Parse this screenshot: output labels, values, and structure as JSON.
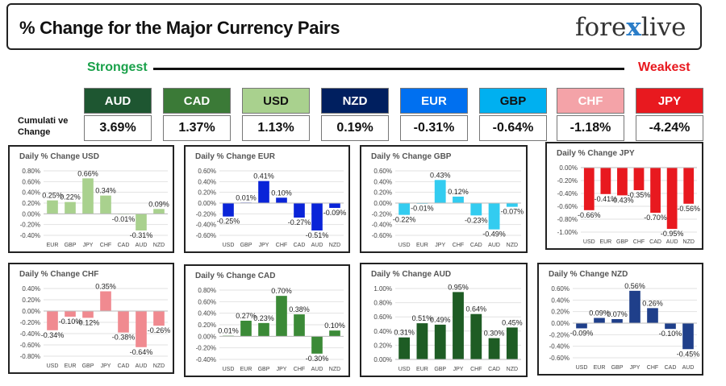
{
  "header": {
    "title": "% Change for the Major Currency Pairs",
    "logo_left": "fore",
    "logo_x": "x",
    "logo_right": "live"
  },
  "strength": {
    "strongest_label": "Strongest",
    "weakest_label": "Weakest",
    "cumulative_label_1": "Cumulati ve",
    "cumulative_label_2": "Change"
  },
  "currencies": [
    {
      "code": "AUD",
      "value": "3.69%",
      "bg": "#1e5631",
      "fg": "#ffffff"
    },
    {
      "code": "CAD",
      "value": "1.37%",
      "bg": "#3b7a37",
      "fg": "#ffffff"
    },
    {
      "code": "USD",
      "value": "1.13%",
      "bg": "#a9d18e",
      "fg": "#111111"
    },
    {
      "code": "NZD",
      "value": "0.19%",
      "bg": "#001f5f",
      "fg": "#ffffff"
    },
    {
      "code": "EUR",
      "value": "-0.31%",
      "bg": "#0070f0",
      "fg": "#ffffff"
    },
    {
      "code": "GBP",
      "value": "-0.64%",
      "bg": "#00b0f0",
      "fg": "#111111"
    },
    {
      "code": "CHF",
      "value": "-1.18%",
      "bg": "#f4a3a8",
      "fg": "#ffffff"
    },
    {
      "code": "JPY",
      "value": "-4.24%",
      "bg": "#e8191f",
      "fg": "#ffffff"
    }
  ],
  "chart_data": [
    {
      "type": "bar",
      "title": "Daily % Change USD",
      "categories": [
        "EUR",
        "GBP",
        "JPY",
        "CHF",
        "CAD",
        "AUD",
        "NZD"
      ],
      "values": [
        0.25,
        0.22,
        0.66,
        0.34,
        -0.01,
        -0.31,
        0.09
      ],
      "data_labels": [
        "0.25%",
        "0.22%",
        "0.66%",
        "0.34%",
        "-0.01%",
        "-0.31%",
        "0.09%"
      ],
      "yticks": [
        0.8,
        0.6,
        0.4,
        0.2,
        0,
        -0.2,
        -0.4
      ],
      "ytick_labels": [
        "0.80%",
        "0.60%",
        "0.40%",
        "0.20%",
        "0.00%",
        "-0.20%",
        "-0.40%"
      ],
      "color": "#a9d18e"
    },
    {
      "type": "bar",
      "title": "Daily % Change EUR",
      "categories": [
        "USD",
        "GBP",
        "JPY",
        "CHF",
        "CAD",
        "AUD",
        "NZD"
      ],
      "values": [
        -0.25,
        0.01,
        0.41,
        0.1,
        -0.27,
        -0.51,
        -0.09
      ],
      "data_labels": [
        "-0.25%",
        "0.01%",
        "0.41%",
        "0.10%",
        "-0.27%",
        "-0.51%",
        "-0.09%"
      ],
      "yticks": [
        0.6,
        0.4,
        0.2,
        0,
        -0.2,
        -0.4,
        -0.6
      ],
      "ytick_labels": [
        "0.60%",
        "0.40%",
        "0.20%",
        "0.00%",
        "-0.20%",
        "-0.40%",
        "-0.60%"
      ],
      "color": "#0a24d8"
    },
    {
      "type": "bar",
      "title": "Daily % Change GBP",
      "categories": [
        "USD",
        "EUR",
        "JPY",
        "CHF",
        "CAD",
        "AUD",
        "NZD"
      ],
      "values": [
        -0.22,
        -0.01,
        0.43,
        0.12,
        -0.23,
        -0.49,
        -0.07
      ],
      "data_labels": [
        "-0.22%",
        "-0.01%",
        "0.43%",
        "0.12%",
        "-0.23%",
        "-0.49%",
        "-0.07%"
      ],
      "yticks": [
        0.6,
        0.4,
        0.2,
        0,
        -0.2,
        -0.4,
        -0.6
      ],
      "ytick_labels": [
        "0.60%",
        "0.40%",
        "0.20%",
        "0.00%",
        "-0.20%",
        "-0.40%",
        "-0.60%"
      ],
      "color": "#33ccf0"
    },
    {
      "type": "bar",
      "title": "Daily % Change JPY",
      "categories": [
        "USD",
        "EUR",
        "GBP",
        "CHF",
        "CAD",
        "AUD",
        "NZD"
      ],
      "values": [
        -0.66,
        -0.41,
        -0.43,
        -0.35,
        -0.7,
        -0.95,
        -0.56
      ],
      "data_labels": [
        "-0.66%",
        "-0.41%",
        "-0.43%",
        "-0.35%",
        "-0.70%",
        "-0.95%",
        "-0.56%"
      ],
      "yticks": [
        0,
        -0.2,
        -0.4,
        -0.6,
        -0.8,
        -1.0
      ],
      "ytick_labels": [
        "0.00%",
        "-0.20%",
        "-0.40%",
        "-0.60%",
        "-0.80%",
        "-1.00%"
      ],
      "color": "#e8191f"
    },
    {
      "type": "bar",
      "title": "Daily % Change CHF",
      "categories": [
        "USD",
        "EUR",
        "GBP",
        "JPY",
        "CAD",
        "AUD",
        "NZD"
      ],
      "values": [
        -0.34,
        -0.1,
        -0.12,
        0.35,
        -0.38,
        -0.64,
        -0.26
      ],
      "data_labels": [
        "-0.34%",
        "-0.10%",
        "-0.12%",
        "0.35%",
        "-0.38%",
        "-0.64%",
        "-0.26%"
      ],
      "yticks": [
        0.4,
        0.2,
        0,
        -0.2,
        -0.4,
        -0.6,
        -0.8
      ],
      "ytick_labels": [
        "0.40%",
        "0.20%",
        "0.00%",
        "-0.20%",
        "-0.40%",
        "-0.60%",
        "-0.80%"
      ],
      "color": "#f08a90"
    },
    {
      "type": "bar",
      "title": "Daily % Change CAD",
      "categories": [
        "USD",
        "EUR",
        "GBP",
        "JPY",
        "CHF",
        "AUD",
        "NZD"
      ],
      "values": [
        0.01,
        0.27,
        0.23,
        0.7,
        0.38,
        -0.3,
        0.1
      ],
      "data_labels": [
        "0.01%",
        "0.27%",
        "0.23%",
        "0.70%",
        "0.38%",
        "-0.30%",
        "0.10%"
      ],
      "yticks": [
        0.8,
        0.6,
        0.4,
        0.2,
        0,
        -0.2,
        -0.4
      ],
      "ytick_labels": [
        "0.80%",
        "0.60%",
        "0.40%",
        "0.20%",
        "0.00%",
        "-0.20%",
        "-0.40%"
      ],
      "color": "#3b8a37"
    },
    {
      "type": "bar",
      "title": "Daily % Change AUD",
      "categories": [
        "USD",
        "EUR",
        "GBP",
        "JPY",
        "CHF",
        "CAD",
        "NZD"
      ],
      "values": [
        0.31,
        0.51,
        0.49,
        0.95,
        0.64,
        0.3,
        0.45
      ],
      "data_labels": [
        "0.31%",
        "0.51%",
        "0.49%",
        "0.95%",
        "0.64%",
        "0.30%",
        "0.45%"
      ],
      "yticks": [
        1.0,
        0.8,
        0.6,
        0.4,
        0.2,
        0
      ],
      "ytick_labels": [
        "1.00%",
        "0.80%",
        "0.60%",
        "0.40%",
        "0.20%",
        "0.00%"
      ],
      "color": "#1e5c24"
    },
    {
      "type": "bar",
      "title": "Daily % Change NZD",
      "categories": [
        "USD",
        "EUR",
        "GBP",
        "JPY",
        "CHF",
        "CAD",
        "AUD"
      ],
      "values": [
        -0.09,
        0.09,
        0.07,
        0.56,
        0.26,
        -0.1,
        -0.45
      ],
      "data_labels": [
        "-0.09%",
        "0.09%",
        "0.07%",
        "0.56%",
        "0.26%",
        "-0.10%",
        "-0.45%"
      ],
      "yticks": [
        0.6,
        0.4,
        0.2,
        0,
        -0.2,
        -0.4,
        -0.6
      ],
      "ytick_labels": [
        "0.60%",
        "0.40%",
        "0.20%",
        "0.00%",
        "-0.20%",
        "-0.40%",
        "-0.60%"
      ],
      "color": "#1f3f8a"
    }
  ]
}
